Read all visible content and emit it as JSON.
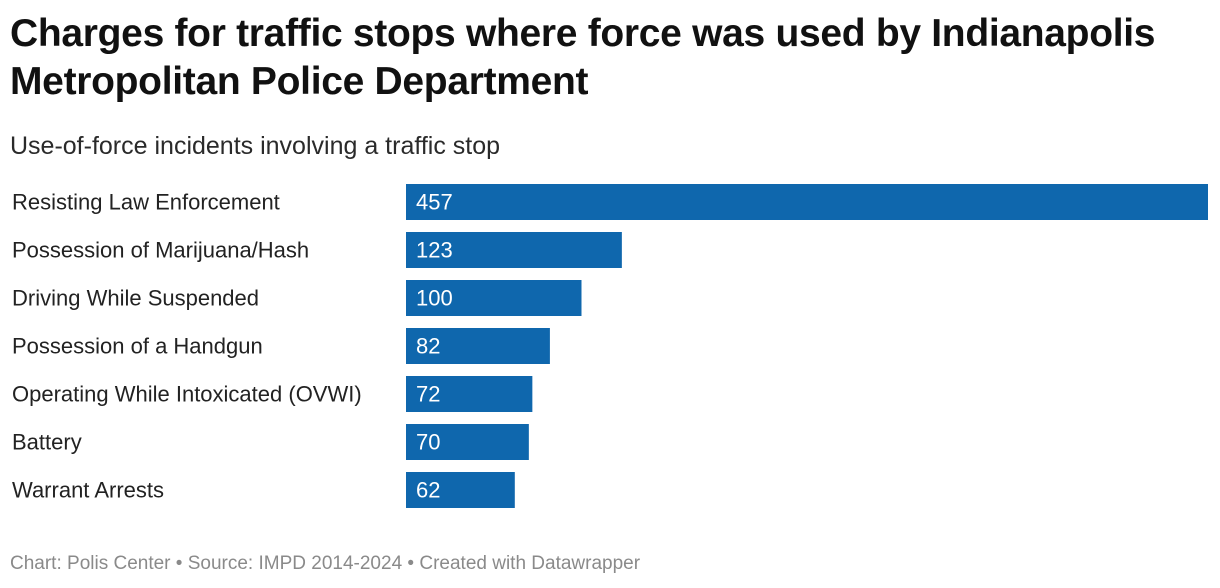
{
  "header": {
    "title": "Charges for traffic stops where force was used by Indianapolis Metropolitan Police Department",
    "subtitle": "Use-of-force incidents involving a traffic stop"
  },
  "colors": {
    "bar": "#0f67ad"
  },
  "chart_data": {
    "type": "bar",
    "orientation": "horizontal",
    "title": "Charges for traffic stops where force was used by Indianapolis Metropolitan Police Department",
    "subtitle": "Use-of-force incidents involving a traffic stop",
    "categories": [
      "Resisting Law Enforcement",
      "Possession of Marijuana/Hash",
      "Driving While Suspended",
      "Possession of a Handgun",
      "Operating While Intoxicated (OVWI)",
      "Battery",
      "Warrant Arrests"
    ],
    "values": [
      457,
      123,
      100,
      82,
      72,
      70,
      62
    ],
    "xlim": [
      0,
      457
    ],
    "xlabel": "",
    "ylabel": "",
    "grid": false,
    "legend": "none"
  },
  "footer": {
    "credit": "Chart: Polis Center",
    "separator": " • ",
    "source": "Source: IMPD 2014-2024",
    "tool": "Created with Datawrapper"
  }
}
